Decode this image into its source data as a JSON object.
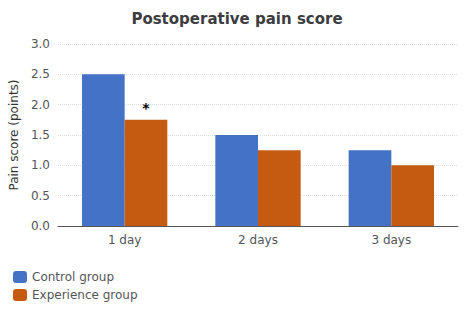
{
  "chart_data": {
    "type": "bar",
    "title": "Postoperative pain score",
    "ylabel": "Pain score (points)",
    "categories": [
      "1 day",
      "2 days",
      "3 days"
    ],
    "series": [
      {
        "name": "Control group",
        "color": "#4472C4",
        "values": [
          2.5,
          1.5,
          1.25
        ]
      },
      {
        "name": "Experience group",
        "color": "#C55A11",
        "values": [
          1.75,
          1.25,
          1.0
        ]
      }
    ],
    "annotations": [
      {
        "text": "*",
        "category": "1 day",
        "series": "Experience group"
      }
    ],
    "ylim": [
      0,
      3
    ],
    "yticks": [
      {
        "value": 0,
        "label": "0.0"
      },
      0.5,
      {
        "value": 1,
        "label": "1.0"
      },
      1.5,
      {
        "value": 2,
        "label": "2.0"
      },
      2.5,
      {
        "value": 3,
        "label": "3.0"
      }
    ],
    "grid": true,
    "legend": "lower left"
  }
}
